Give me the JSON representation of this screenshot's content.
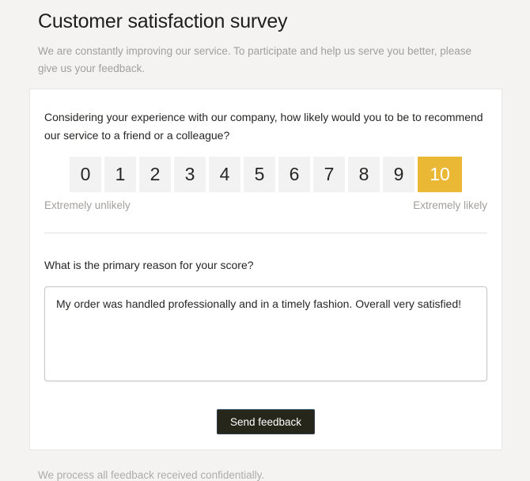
{
  "page": {
    "title": "Customer satisfaction survey",
    "subtitle": "We are constantly improving our service. To participate and help us serve you better, please give us your feedback.",
    "footer_note": "We process all feedback received confidentially."
  },
  "survey": {
    "nps_question": "Considering your experience with our company, how likely would you to be to recommend our service to a friend or a colleague?",
    "scale": {
      "options": [
        "0",
        "1",
        "2",
        "3",
        "4",
        "5",
        "6",
        "7",
        "8",
        "9",
        "10"
      ],
      "selected": "10",
      "min_label": "Extremely unlikely",
      "max_label": "Extremely likely"
    },
    "reason_question": "What is the primary reason for your score?",
    "reason_value": "My order was handled professionally and in a timely fashion. Overall very satisfied!",
    "submit_label": "Send feedback"
  },
  "colors": {
    "page_bg": "#f4f3f2",
    "score_bg": "#f2f2f2",
    "selected_score_bg": "#ebb835",
    "selected_score_text": "#ffffff",
    "submit_bg": "#26271a",
    "submit_text": "#ffffff"
  }
}
